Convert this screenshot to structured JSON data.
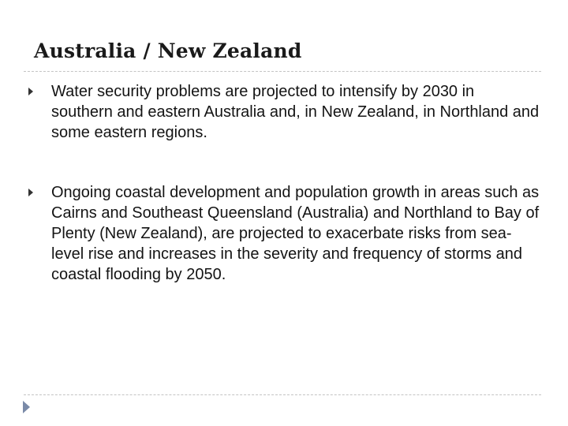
{
  "slide": {
    "title": "Australia / New Zealand",
    "bullets": [
      {
        "text": "Water security problems are projected to intensify by 2030 in southern and eastern Australia and, in New Zealand, in Northland and some eastern regions."
      },
      {
        "text": "Ongoing coastal development and population growth in areas such as Cairns and Southeast Queensland (Australia) and Northland to Bay of Plenty (New Zealand), are projected to exacerbate risks from sea-level rise and increases in the severity and frequency of storms and coastal flooding by 2050."
      }
    ],
    "bullet_icon": "triangle-right-icon",
    "nav_icon": "play-arrow-icon"
  },
  "colors": {
    "background": "#ffffff",
    "text": "#141414",
    "divider": "#c4c4c4",
    "nav_arrow": "#7a8aa8"
  }
}
